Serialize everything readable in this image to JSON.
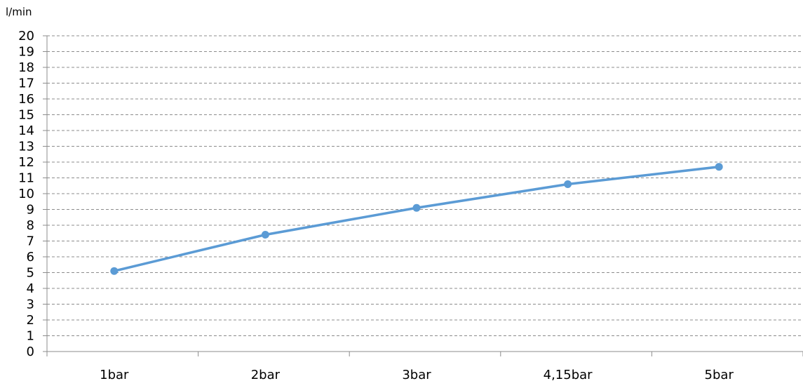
{
  "chart_data": {
    "type": "line",
    "title": "",
    "xlabel": "",
    "ylabel": "l/min",
    "categories": [
      "1bar",
      "2bar",
      "3bar",
      "4,15bar",
      "5bar"
    ],
    "series": [
      {
        "values": [
          5.1,
          7.4,
          9.1,
          10.6,
          11.7
        ]
      }
    ],
    "ylim": [
      0,
      20
    ],
    "ytick_step": 1,
    "grid": true,
    "grid_style": "dashed",
    "line_color": "#5B9BD5",
    "grid_color": "#8C8C8C",
    "axis_color": "#8C8C8C"
  }
}
